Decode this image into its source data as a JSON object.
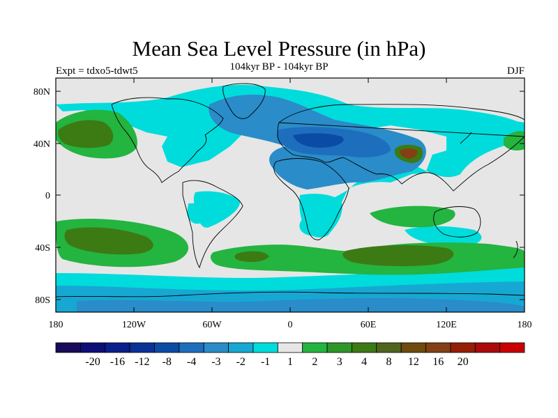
{
  "title": "Mean Sea Level Pressure (in hPa)",
  "subtitle": "104kyr BP - 104kyr BP",
  "left_label": "Expt = tdxo5-tdwt5",
  "right_label": "DJF",
  "map": {
    "lat_labels": [
      "80N",
      "40N",
      "0",
      "40S",
      "80S"
    ],
    "lon_labels": [
      "180",
      "120W",
      "60W",
      "0",
      "60E",
      "120E",
      "180"
    ],
    "background_color": "#e6e6e6"
  },
  "colorbar": {
    "colors": [
      "#1a0a5a",
      "#0e0e78",
      "#0a1e8c",
      "#0a3296",
      "#0a4ca5",
      "#1e6ebe",
      "#2a8cc8",
      "#16a8d2",
      "#00dcdc",
      "#e6e6e6",
      "#24b440",
      "#2e9628",
      "#3c7a14",
      "#50641e",
      "#6e4a0e",
      "#824014",
      "#961e06",
      "#aa0a0a",
      "#c80000"
    ],
    "labels": [
      "-20",
      "-16",
      "-12",
      "-8",
      "-4",
      "-3",
      "-2",
      "-1",
      "1",
      "2",
      "3",
      "4",
      "8",
      "12",
      "16",
      "20"
    ]
  }
}
